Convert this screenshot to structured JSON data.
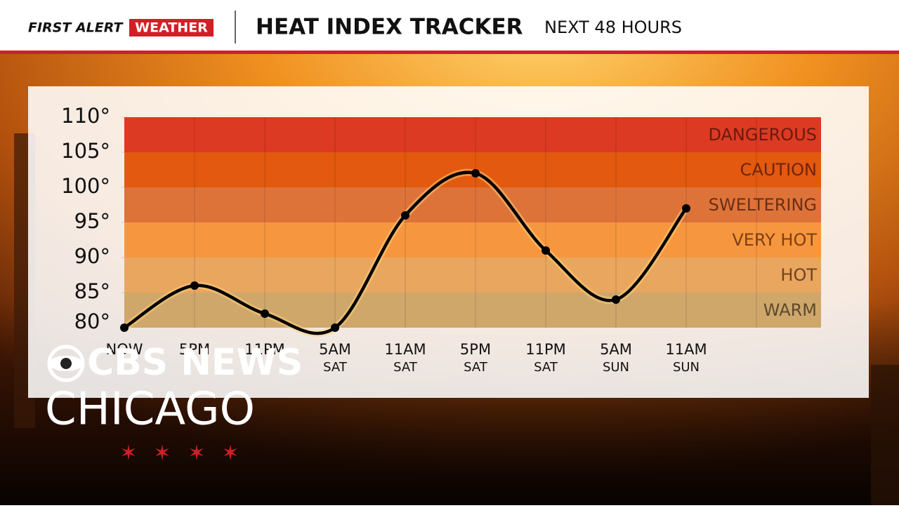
{
  "header": {
    "brand_first": "FIRST ALERT",
    "brand_second": "WEATHER",
    "title": "HEAT INDEX TRACKER",
    "subtitle": "NEXT 48 HOURS"
  },
  "logo": {
    "network": "CBS NEWS",
    "city": "CHICAGO"
  },
  "chart_data": {
    "type": "line",
    "categories": [
      "NOW",
      "5PM",
      "11PM",
      "5AM",
      "11AM",
      "5PM",
      "11PM",
      "5AM",
      "11AM"
    ],
    "category_days": [
      null,
      null,
      null,
      "SAT",
      "SAT",
      "SAT",
      "SAT",
      "SUN",
      "SUN"
    ],
    "values": [
      80,
      86,
      82,
      80,
      96,
      102,
      91,
      84,
      97
    ],
    "color": "#000000",
    "ylim": [
      80,
      110
    ],
    "yticks": [
      {
        "value": 80,
        "label": "80°"
      },
      {
        "value": 85,
        "label": "85°"
      },
      {
        "value": 90,
        "label": "90°"
      },
      {
        "value": 95,
        "label": "95°"
      },
      {
        "value": 100,
        "label": "100°"
      },
      {
        "value": 105,
        "label": "105°"
      },
      {
        "value": 110,
        "label": "110°"
      }
    ],
    "zones": [
      {
        "name": "WARM",
        "from": 80,
        "to": 85,
        "color": "#cfa76b",
        "text_color": "#5e4a2c"
      },
      {
        "name": "HOT",
        "from": 85,
        "to": 90,
        "color": "#e9a65f",
        "text_color": "#6e4422"
      },
      {
        "name": "VERY HOT",
        "from": 90,
        "to": 95,
        "color": "#f6973f",
        "text_color": "#7d3f15"
      },
      {
        "name": "SWELTERING",
        "from": 95,
        "to": 100,
        "color": "#de733a",
        "text_color": "#6c2e13"
      },
      {
        "name": "CAUTION",
        "from": 100,
        "to": 105,
        "color": "#e2590f",
        "text_color": "#6f240a"
      },
      {
        "name": "DANGEROUS",
        "from": 105,
        "to": 110,
        "color": "#dc3a22",
        "text_color": "#6a1a10"
      }
    ],
    "grid": true
  }
}
